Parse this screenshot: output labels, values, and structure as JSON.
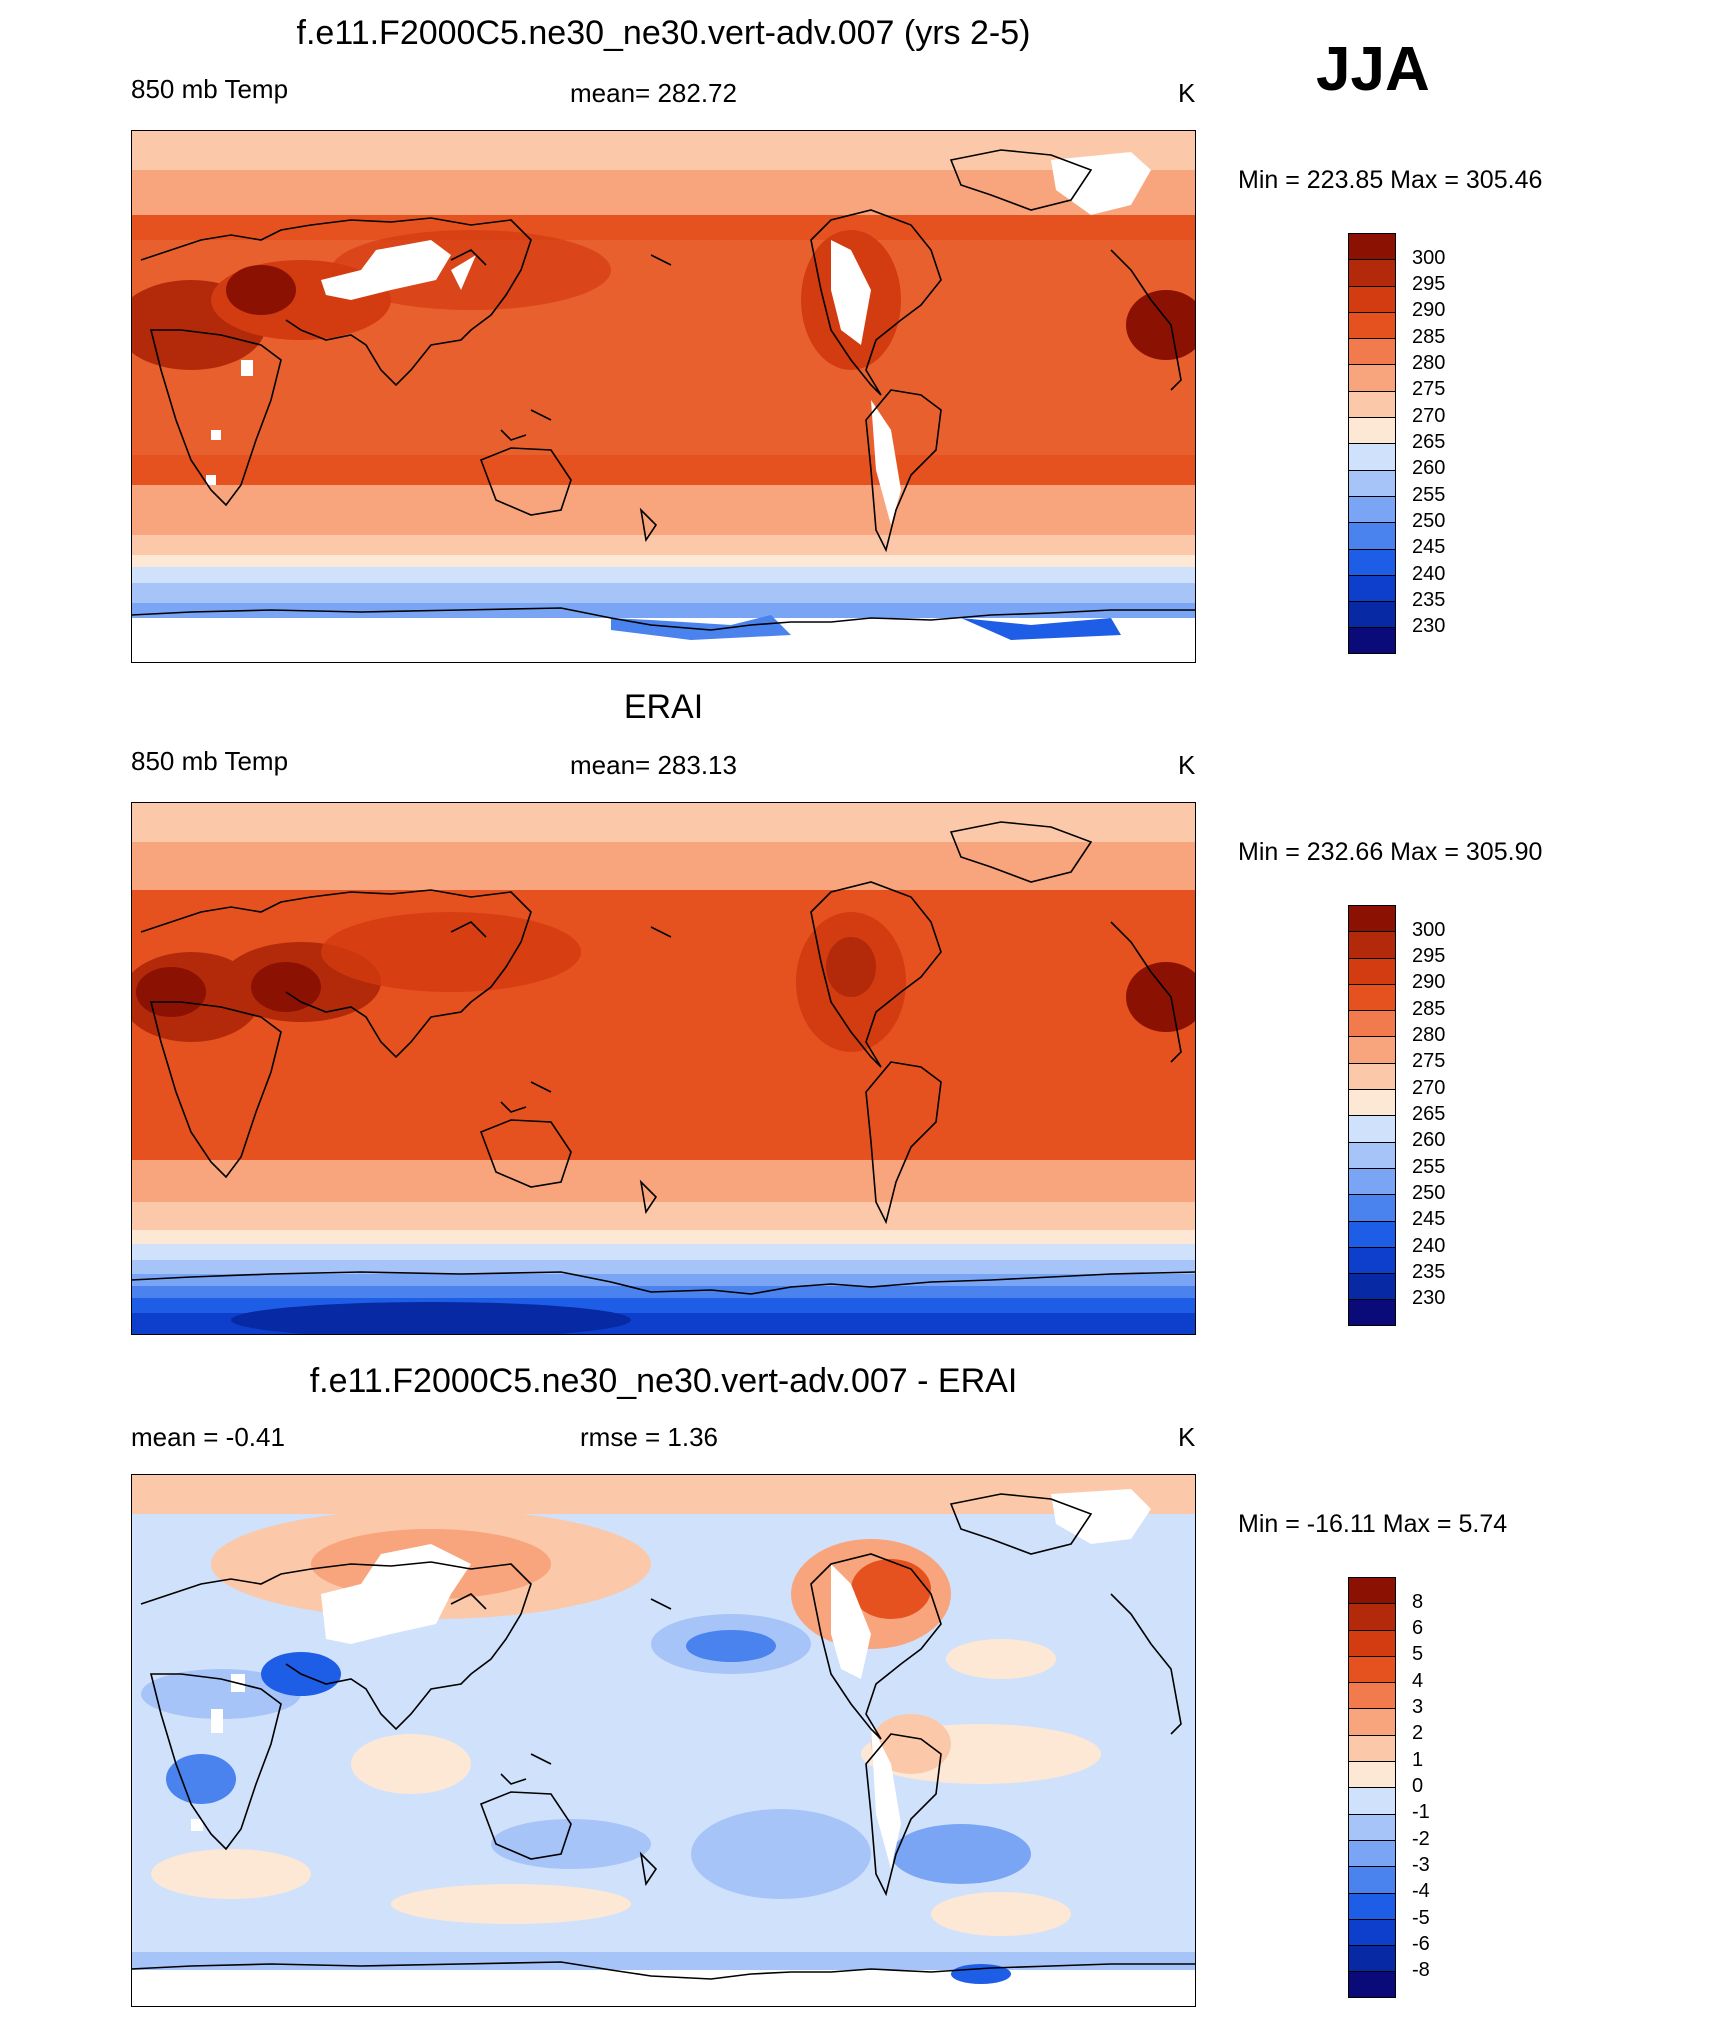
{
  "season": "JJA",
  "colors": {
    "temp_palette": [
      "#0a0a78",
      "#0729a3",
      "#0d3fcc",
      "#1e5de6",
      "#4a82ee",
      "#7aa5f4",
      "#a7c4f8",
      "#d0e1fb",
      "#fde8d6",
      "#fbc9aa",
      "#f8a47d",
      "#f27b4e",
      "#e5521f",
      "#d33b10",
      "#b22a09",
      "#8b1103"
    ],
    "diff_palette": [
      "#0a0a78",
      "#0729a3",
      "#0d3fcc",
      "#1e5de6",
      "#4a82ee",
      "#7aa5f4",
      "#a7c4f8",
      "#d0e1fb",
      "#fde8d6",
      "#fbc9aa",
      "#f8a47d",
      "#f27b4e",
      "#e5521f",
      "#d33b10",
      "#b22a09",
      "#8b1103"
    ],
    "missing": "#ffffff",
    "coastline": "#000000"
  },
  "panels": [
    {
      "title": "f.e11.F2000C5.ne30_ne30.vert-adv.007 (yrs 2-5)",
      "left_label": "850 mb Temp",
      "center_label": "mean= 282.72",
      "units": "K",
      "minmax": "Min = 223.85 Max = 305.46",
      "levels": [
        "300",
        "295",
        "290",
        "285",
        "280",
        "275",
        "270",
        "265",
        "260",
        "255",
        "250",
        "245",
        "240",
        "235",
        "230"
      ]
    },
    {
      "title": "ERAI",
      "left_label": "850 mb Temp",
      "center_label": "mean= 283.13",
      "units": "K",
      "minmax": "Min = 232.66 Max = 305.90",
      "levels": [
        "300",
        "295",
        "290",
        "285",
        "280",
        "275",
        "270",
        "265",
        "260",
        "255",
        "250",
        "245",
        "240",
        "235",
        "230"
      ]
    },
    {
      "title": "f.e11.F2000C5.ne30_ne30.vert-adv.007 - ERAI",
      "left_label": "mean =  -0.41",
      "center_label": "rmse =   1.36",
      "units": "K",
      "minmax": "Min = -16.11 Max =   5.74",
      "levels": [
        "8",
        "6",
        "5",
        "4",
        "3",
        "2",
        "1",
        "0",
        "-1",
        "-2",
        "-3",
        "-4",
        "-5",
        "-6",
        "-8"
      ]
    }
  ]
}
